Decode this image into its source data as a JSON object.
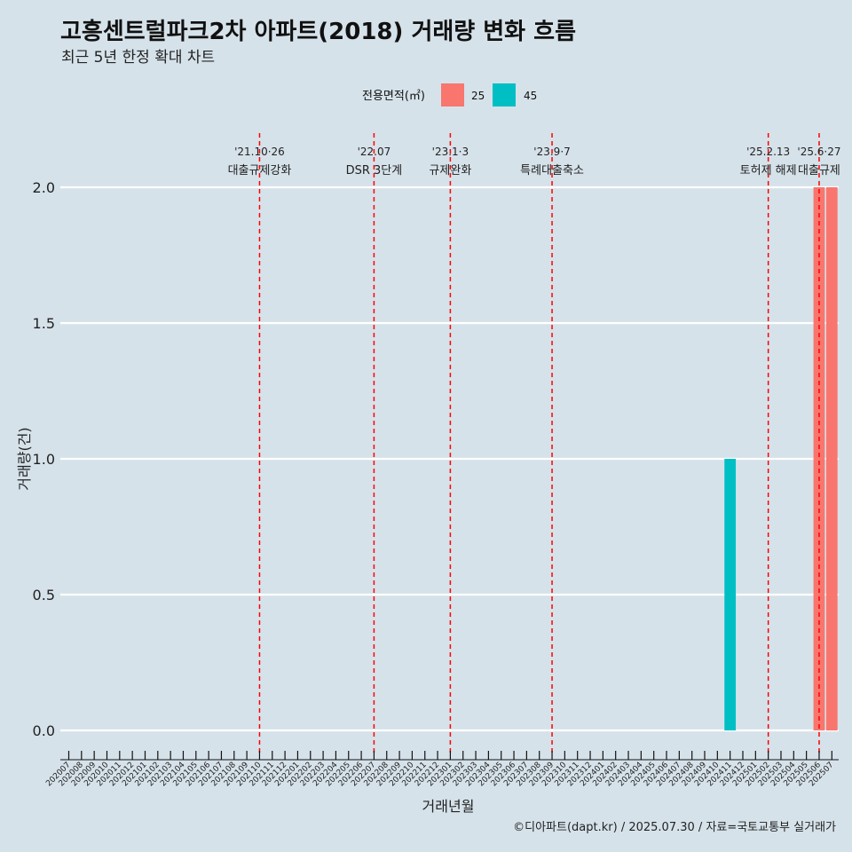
{
  "title": "고흥센트럴파크2차 아파트(2018) 거래량 변화 흐름",
  "subtitle": "최근 5년 한정 확대 차트",
  "caption": "©디아파트(dapt.kr) / 2025.07.30 / 자료=국토교통부 실거래가",
  "legend": {
    "title": "전용면적(㎡)",
    "items": [
      {
        "label": "25",
        "color": "#f8766d"
      },
      {
        "label": "45",
        "color": "#00bfc4"
      }
    ]
  },
  "colors": {
    "background": "#d6e2ea",
    "grid": "#ffffff",
    "event_line": "#ff0000"
  },
  "chart_data": {
    "type": "bar",
    "xlabel": "거래년월",
    "ylabel": "거래량(건)",
    "ylim": [
      0,
      2
    ],
    "yticks": [
      "0.0",
      "0.5",
      "1.0",
      "1.5",
      "2.0"
    ],
    "grid": true,
    "legend_position": "top",
    "categories": [
      "202007",
      "202008",
      "202009",
      "202010",
      "202011",
      "202012",
      "202101",
      "202102",
      "202103",
      "202104",
      "202105",
      "202106",
      "202107",
      "202108",
      "202109",
      "202110",
      "202111",
      "202112",
      "202201",
      "202202",
      "202203",
      "202204",
      "202205",
      "202206",
      "202207",
      "202208",
      "202209",
      "202210",
      "202211",
      "202212",
      "202301",
      "202302",
      "202303",
      "202304",
      "202305",
      "202306",
      "202307",
      "202308",
      "202309",
      "202310",
      "202311",
      "202312",
      "202401",
      "202402",
      "202403",
      "202404",
      "202405",
      "202406",
      "202407",
      "202408",
      "202409",
      "202410",
      "202411",
      "202412",
      "202501",
      "202502",
      "202503",
      "202504",
      "202505",
      "202506",
      "202507"
    ],
    "series": [
      {
        "name": "25",
        "bars": [
          {
            "x": "202506",
            "y": 2
          },
          {
            "x": "202507",
            "y": 2
          }
        ]
      },
      {
        "name": "45",
        "bars": [
          {
            "x": "202411",
            "y": 1
          }
        ]
      }
    ],
    "events": [
      {
        "x": "202110",
        "date": "'21.10·26",
        "label": "대출규제강화"
      },
      {
        "x": "202207",
        "date": "'22.07",
        "label": "DSR 3단계"
      },
      {
        "x": "202301",
        "date": "'23.1·3",
        "label": "규제완화"
      },
      {
        "x": "202309",
        "date": "'23.9·7",
        "label": "특례대출축소"
      },
      {
        "x": "202502",
        "date": "'25.2.13",
        "label": "토허제 해제"
      },
      {
        "x": "202506",
        "date": "'25.6·27",
        "label": "대출규제"
      }
    ]
  }
}
